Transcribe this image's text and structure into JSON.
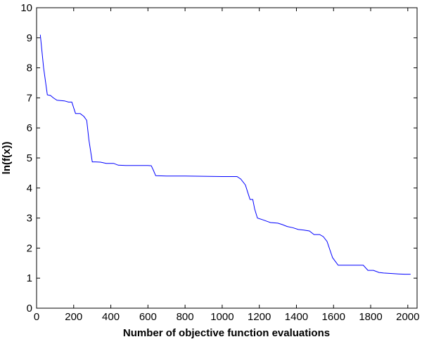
{
  "chart_data": {
    "type": "line",
    "title": "",
    "xlabel": "Number of objective function evaluations",
    "ylabel": "ln(f(x))",
    "xlim": [
      0,
      2050
    ],
    "ylim": [
      0,
      10
    ],
    "xticks": [
      "0",
      "200",
      "400",
      "600",
      "800",
      "1000",
      "1200",
      "1400",
      "1600",
      "1800",
      "2000"
    ],
    "yticks": [
      "0",
      "1",
      "2",
      "3",
      "4",
      "5",
      "6",
      "7",
      "8",
      "9",
      "10"
    ],
    "grid": false,
    "legend": "none",
    "line_color": "#0000ff",
    "series": [
      {
        "x": [
          20,
          38,
          58,
          75,
          90,
          110,
          150,
          172,
          190,
          210,
          235,
          255,
          270,
          282,
          300,
          318,
          345,
          375,
          415,
          440,
          480,
          540,
          600,
          618,
          630,
          642,
          700,
          800,
          900,
          1000,
          1080,
          1100,
          1125,
          1138,
          1150,
          1165,
          1175,
          1190,
          1220,
          1260,
          1300,
          1325,
          1350,
          1380,
          1410,
          1440,
          1470,
          1495,
          1525,
          1545,
          1565,
          1595,
          1625,
          1700,
          1760,
          1785,
          1815,
          1845,
          1870,
          1900,
          1950,
          1985,
          2015
        ],
        "y": [
          9.1,
          8.0,
          7.1,
          7.08,
          7.0,
          6.92,
          6.9,
          6.86,
          6.86,
          6.48,
          6.48,
          6.38,
          6.25,
          5.6,
          4.87,
          4.87,
          4.86,
          4.82,
          4.82,
          4.76,
          4.75,
          4.75,
          4.75,
          4.74,
          4.58,
          4.41,
          4.4,
          4.4,
          4.39,
          4.38,
          4.38,
          4.3,
          4.1,
          3.85,
          3.62,
          3.62,
          3.3,
          3.0,
          2.94,
          2.85,
          2.83,
          2.78,
          2.72,
          2.68,
          2.62,
          2.6,
          2.57,
          2.45,
          2.45,
          2.38,
          2.22,
          1.68,
          1.43,
          1.43,
          1.43,
          1.26,
          1.26,
          1.19,
          1.17,
          1.16,
          1.14,
          1.13,
          1.13
        ]
      }
    ]
  }
}
